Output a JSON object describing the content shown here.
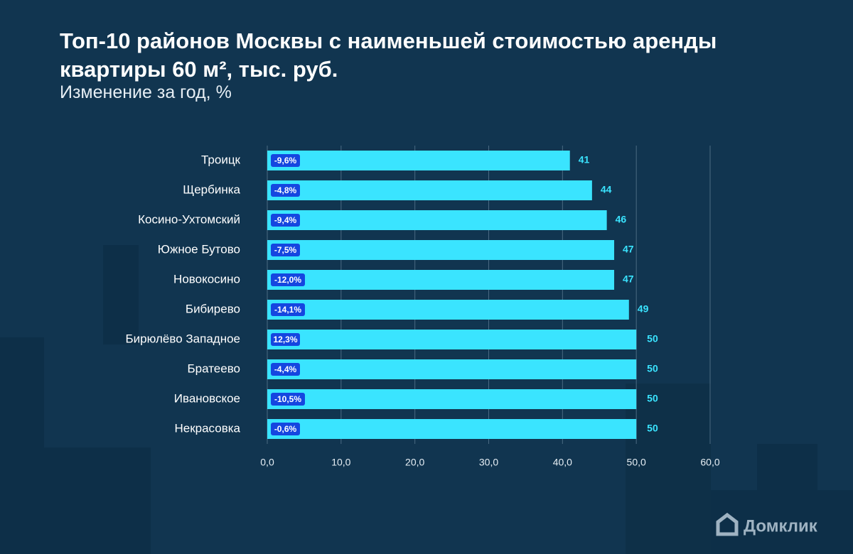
{
  "chart_data": {
    "type": "barh",
    "title": "Топ-10 районов Москвы с наименьшей стоимостью аренды квартиры 60 м², тыс. руб.",
    "subtitle": "Изменение за год, %",
    "categories": [
      "Троицк",
      "Щербинка",
      "Косино-Ухтомский",
      "Южное Бутово",
      "Новокосино",
      "Бибирево",
      "Бирюлёво Западное",
      "Братеево",
      "Ивановское",
      "Некрасовка"
    ],
    "values": [
      41,
      44,
      46,
      47,
      47,
      49,
      50,
      50,
      50,
      50
    ],
    "change_labels": [
      "-9,6%",
      "-4,8%",
      "-9,4%",
      "-7,5%",
      "-12,0%",
      "-14,1%",
      "12,3%",
      "-4,4%",
      "-10,5%",
      "-0,6%"
    ],
    "color": "#3ae4ff",
    "badge_color": "#1546e0",
    "xlim": [
      0,
      60
    ],
    "xticks": [
      {
        "value": 0,
        "label": "0,0"
      },
      {
        "value": 10,
        "label": "10,0"
      },
      {
        "value": 20,
        "label": "20,0"
      },
      {
        "value": 30,
        "label": "30,0"
      },
      {
        "value": 40,
        "label": "40,0"
      },
      {
        "value": 50,
        "label": "50,0"
      },
      {
        "value": 60,
        "label": "60,0"
      }
    ],
    "grid": true,
    "logo": "Домклик"
  }
}
